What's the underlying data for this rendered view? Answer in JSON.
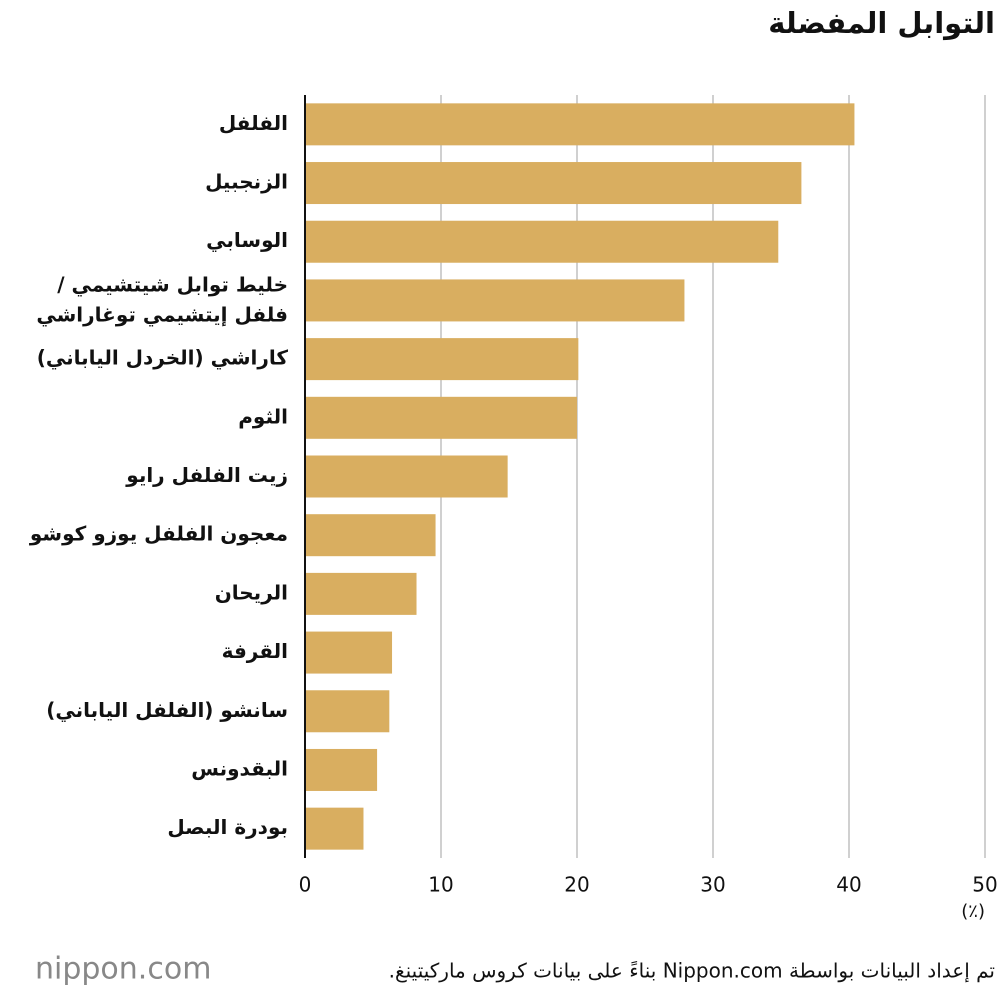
{
  "chart_data": {
    "type": "barh",
    "title": "التوابل المفضلة",
    "categories": [
      "الفلفل",
      "الزنجبيل",
      "الوسابي",
      "خليط توابل شيتشيمي /\nفلفل إيتشيمي توغاراشي",
      "كاراشي (الخردل الياباني)",
      "الثوم",
      "زيت الفلفل رايو",
      "معجون الفلفل يوزو كوشو",
      "الريحان",
      "القرفة",
      "سانشو (الفلفل الياباني)",
      "البقدونس",
      "بودرة البصل"
    ],
    "values": [
      40.4,
      36.5,
      34.8,
      27.9,
      20.1,
      20.0,
      14.9,
      9.6,
      8.2,
      6.4,
      6.2,
      5.3,
      4.3
    ],
    "color": "#d9ae60",
    "xlim": [
      0,
      50
    ],
    "xticks": [
      0,
      10,
      20,
      30,
      40,
      50
    ],
    "x_unit": "(٪)",
    "grid": true,
    "source": "تم إعداد البيانات بواسطة Nippon.com بناءً على بيانات كروس ماركيتينغ.",
    "logo": "nippon.com"
  }
}
